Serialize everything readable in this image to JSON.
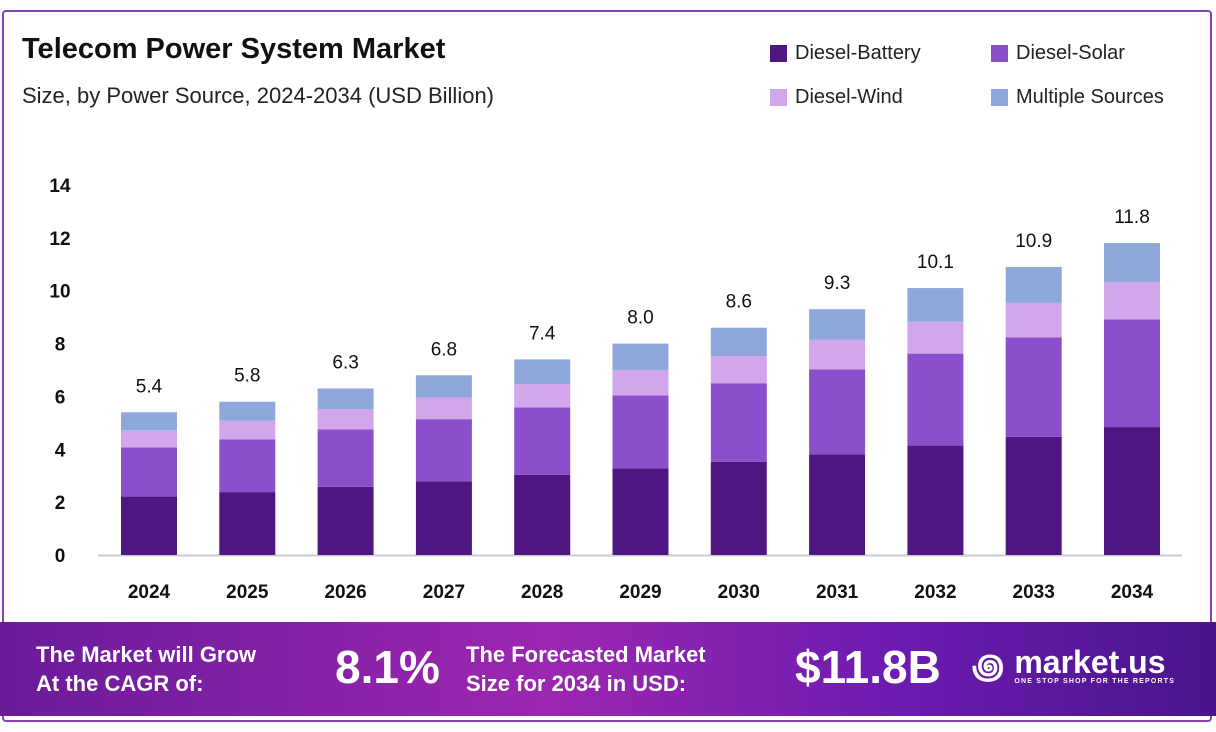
{
  "chart_data": {
    "type": "bar",
    "stacked": true,
    "title": "Telecom Power System Market",
    "subtitle": "Size, by Power Source, 2024-2034 (USD Billion)",
    "xlabel": "",
    "ylabel": "",
    "ylim": [
      0,
      14
    ],
    "yticks": [
      "0",
      "2",
      "4",
      "6",
      "8",
      "10",
      "12",
      "14"
    ],
    "categories": [
      "2024",
      "2025",
      "2026",
      "2027",
      "2028",
      "2029",
      "2030",
      "2031",
      "2032",
      "2033",
      "2034"
    ],
    "totals": [
      "5.4",
      "5.8",
      "6.3",
      "6.8",
      "7.4",
      "8.0",
      "8.6",
      "9.3",
      "10.1",
      "10.9",
      "11.8"
    ],
    "series": [
      {
        "name": "Diesel-Battery",
        "color": "#4f1682",
        "values": [
          2.21,
          2.38,
          2.58,
          2.79,
          3.03,
          3.28,
          3.53,
          3.81,
          4.14,
          4.47,
          4.84
        ]
      },
      {
        "name": "Diesel-Solar",
        "color": "#8b4fcc",
        "values": [
          1.86,
          2.0,
          2.17,
          2.35,
          2.55,
          2.76,
          2.97,
          3.21,
          3.48,
          3.76,
          4.07
        ]
      },
      {
        "name": "Diesel-Wind",
        "color": "#d1a6ea",
        "values": [
          0.65,
          0.7,
          0.76,
          0.82,
          0.89,
          0.96,
          1.03,
          1.12,
          1.21,
          1.31,
          1.42
        ]
      },
      {
        "name": "Multiple Sources",
        "color": "#8ea8dc",
        "values": [
          0.68,
          0.72,
          0.79,
          0.84,
          0.93,
          1.0,
          1.07,
          1.16,
          1.27,
          1.36,
          1.47
        ]
      }
    ],
    "legend": "top-right",
    "grid": false
  },
  "footer": {
    "cagr_text_1": "The Market will Grow",
    "cagr_text_2": "At the CAGR of:",
    "cagr_value": "8.1%",
    "forecast_text_1": "The Forecasted Market",
    "forecast_text_2": "Size for 2034 in USD:",
    "forecast_value": "$11.8B",
    "logo_name": "market.us",
    "logo_tagline": "ONE STOP SHOP FOR THE REPORTS"
  }
}
